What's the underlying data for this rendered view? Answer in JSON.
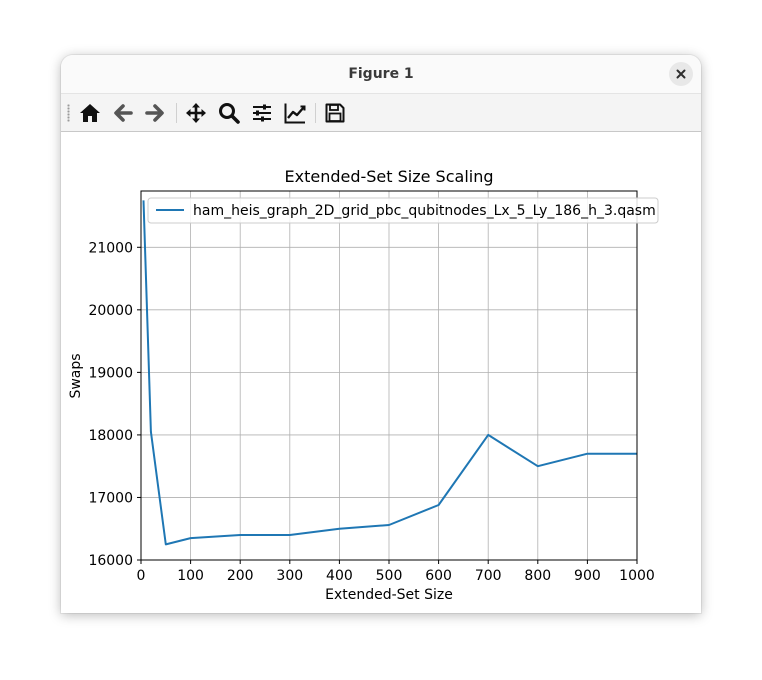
{
  "window": {
    "title": "Figure 1"
  },
  "toolbar": {
    "buttons": [
      {
        "name": "home-button",
        "icon": "home-icon"
      },
      {
        "name": "back-button",
        "icon": "arrow-left-icon"
      },
      {
        "name": "forward-button",
        "icon": "arrow-right-icon"
      },
      {
        "name": "pan-button",
        "icon": "move-icon"
      },
      {
        "name": "zoom-button",
        "icon": "magnifier-icon"
      },
      {
        "name": "configure-subplots-button",
        "icon": "sliders-icon"
      },
      {
        "name": "edit-axis-button",
        "icon": "line-chart-icon"
      },
      {
        "name": "save-button",
        "icon": "floppy-disk-icon"
      }
    ]
  },
  "chart_data": {
    "type": "line",
    "title": "Extended-Set Size Scaling",
    "xlabel": "Extended-Set Size",
    "ylabel": "Swaps",
    "xlim": [
      0,
      1000
    ],
    "ylim": [
      16000,
      21900
    ],
    "xticks": [
      0,
      100,
      200,
      300,
      400,
      500,
      600,
      700,
      800,
      900,
      1000
    ],
    "yticks": [
      16000,
      17000,
      18000,
      19000,
      20000,
      21000
    ],
    "grid": true,
    "legend_position": "top-right",
    "series": [
      {
        "name": "ham_heis_graph_2D_grid_pbc_qubitnodes_Lx_5_Ly_186_h_3.qasm",
        "color": "#1f77b4",
        "x": [
          5,
          20,
          50,
          100,
          200,
          300,
          400,
          500,
          600,
          700,
          800,
          900,
          1000
        ],
        "y": [
          21750,
          18050,
          16250,
          16350,
          16400,
          16400,
          16500,
          16560,
          16880,
          18000,
          17500,
          17700,
          17700
        ]
      }
    ]
  }
}
